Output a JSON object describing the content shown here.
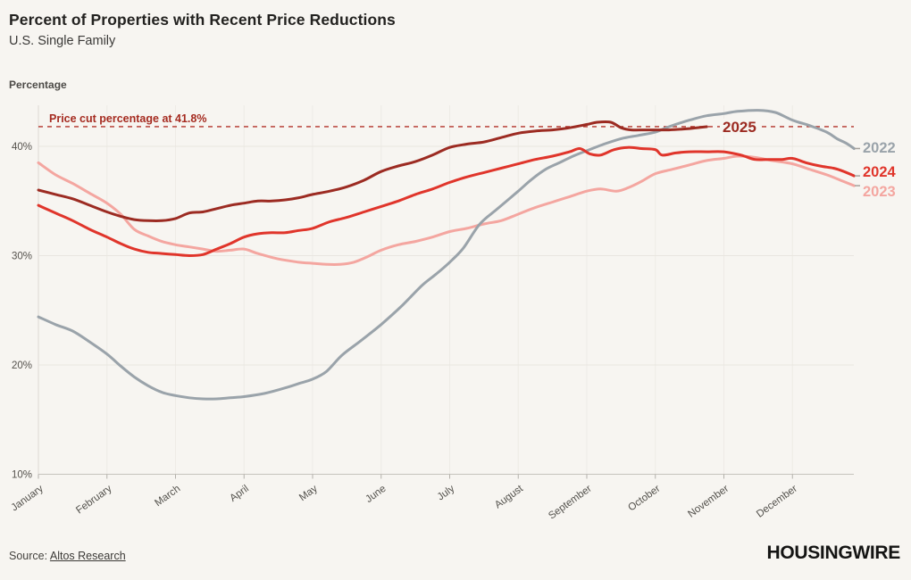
{
  "header": {
    "title": "Percent of Properties with Recent Price Reductions",
    "subtitle": "U.S. Single Family"
  },
  "chart_data": {
    "type": "line",
    "title": "Percent of Properties with Recent Price Reductions",
    "subtitle": "U.S. Single Family",
    "ylabel": "Percentage",
    "grid": "horizontal",
    "legend_position": "right-line-ends",
    "ylim": [
      10,
      45
    ],
    "y_ticks": [
      {
        "value": 40,
        "label": "40%"
      },
      {
        "value": 30,
        "label": "30%"
      },
      {
        "value": 20,
        "label": "20%"
      },
      {
        "value": 10,
        "label": "10%"
      }
    ],
    "x_categories": [
      "January",
      "February",
      "March",
      "April",
      "May",
      "June",
      "July",
      "August",
      "September",
      "October",
      "November",
      "December"
    ],
    "annotation": {
      "label": "Price cut percentage at 41.8%",
      "value": 41.8,
      "color": "#b23228",
      "style": "dashed"
    },
    "series": [
      {
        "name": "2022",
        "color": "#9aa3aa",
        "x": [
          0,
          0.25,
          0.5,
          0.75,
          1,
          1.2,
          1.4,
          1.6,
          1.8,
          2,
          2.2,
          2.4,
          2.6,
          2.8,
          3,
          3.3,
          3.6,
          3.8,
          4,
          4.2,
          4.43,
          4.7,
          5,
          5.3,
          5.6,
          5.8,
          6,
          6.2,
          6.44,
          6.7,
          7,
          7.2,
          7.4,
          7.6,
          7.8,
          8,
          8.25,
          8.5,
          8.75,
          9,
          9.2,
          9.5,
          9.75,
          10,
          10.2,
          10.5,
          10.75,
          11,
          11.25,
          11.5,
          11.65,
          11.78,
          11.9
        ],
        "values": [
          24.4,
          23.7,
          23.1,
          22.1,
          21.0,
          19.9,
          18.9,
          18.1,
          17.5,
          17.2,
          17.0,
          16.9,
          16.9,
          17.0,
          17.1,
          17.4,
          17.9,
          18.3,
          18.7,
          19.4,
          20.9,
          22.2,
          23.7,
          25.4,
          27.3,
          28.3,
          29.4,
          30.7,
          32.9,
          34.3,
          35.9,
          37.0,
          37.9,
          38.5,
          39.1,
          39.6,
          40.2,
          40.7,
          41.0,
          41.3,
          41.8,
          42.4,
          42.8,
          43.0,
          43.2,
          43.3,
          43.1,
          42.4,
          41.9,
          41.3,
          40.7,
          40.3,
          39.8
        ]
      },
      {
        "name": "2023",
        "color": "#f4a6a0",
        "x": [
          0,
          0.25,
          0.5,
          0.75,
          1,
          1.2,
          1.4,
          1.6,
          1.8,
          2,
          2.2,
          2.4,
          2.6,
          2.8,
          3,
          3.2,
          3.5,
          3.8,
          4,
          4.2,
          4.4,
          4.6,
          4.8,
          5,
          5.25,
          5.5,
          5.75,
          6,
          6.25,
          6.5,
          6.75,
          7,
          7.25,
          7.5,
          7.75,
          8,
          8.2,
          8.43,
          8.6,
          8.8,
          9,
          9.25,
          9.5,
          9.75,
          10,
          10.2,
          10.45,
          10.7,
          11,
          11.25,
          11.5,
          11.7,
          11.9
        ],
        "values": [
          38.5,
          37.4,
          36.6,
          35.7,
          34.8,
          33.8,
          32.4,
          31.8,
          31.3,
          31.0,
          30.8,
          30.6,
          30.4,
          30.5,
          30.6,
          30.2,
          29.7,
          29.4,
          29.3,
          29.2,
          29.2,
          29.4,
          29.9,
          30.5,
          31.0,
          31.3,
          31.7,
          32.2,
          32.5,
          32.9,
          33.2,
          33.8,
          34.4,
          34.9,
          35.4,
          35.9,
          36.1,
          35.9,
          36.2,
          36.8,
          37.5,
          37.9,
          38.3,
          38.7,
          38.9,
          39.1,
          39.0,
          38.7,
          38.4,
          37.9,
          37.4,
          36.9,
          36.4
        ]
      },
      {
        "name": "2024",
        "color": "#e0352b",
        "x": [
          0,
          0.25,
          0.5,
          0.75,
          1,
          1.2,
          1.4,
          1.6,
          1.8,
          2,
          2.2,
          2.4,
          2.6,
          2.8,
          3,
          3.2,
          3.4,
          3.6,
          3.8,
          4,
          4.25,
          4.5,
          4.75,
          5,
          5.25,
          5.5,
          5.75,
          6,
          6.25,
          6.5,
          6.75,
          7,
          7.25,
          7.5,
          7.75,
          7.9,
          8.05,
          8.2,
          8.4,
          8.6,
          8.8,
          9,
          9.1,
          9.3,
          9.5,
          9.75,
          10,
          10.25,
          10.45,
          10.65,
          10.85,
          11,
          11.2,
          11.4,
          11.6,
          11.75,
          11.9
        ],
        "values": [
          34.6,
          33.9,
          33.2,
          32.4,
          31.7,
          31.1,
          30.6,
          30.3,
          30.2,
          30.1,
          30.0,
          30.1,
          30.6,
          31.1,
          31.7,
          32.0,
          32.1,
          32.1,
          32.3,
          32.5,
          33.1,
          33.5,
          34.0,
          34.5,
          35.0,
          35.6,
          36.1,
          36.7,
          37.2,
          37.6,
          38.0,
          38.4,
          38.8,
          39.1,
          39.5,
          39.8,
          39.3,
          39.2,
          39.7,
          39.9,
          39.8,
          39.7,
          39.2,
          39.4,
          39.5,
          39.5,
          39.5,
          39.2,
          38.8,
          38.8,
          38.8,
          38.9,
          38.5,
          38.2,
          38.0,
          37.7,
          37.3
        ]
      },
      {
        "name": "2025",
        "color": "#9c2b22",
        "x": [
          0,
          0.25,
          0.5,
          0.75,
          1,
          1.2,
          1.4,
          1.6,
          1.8,
          2,
          2.2,
          2.4,
          2.6,
          2.8,
          3,
          3.2,
          3.4,
          3.6,
          3.8,
          4,
          4.25,
          4.5,
          4.75,
          5,
          5.25,
          5.5,
          5.75,
          6,
          6.25,
          6.5,
          6.75,
          7,
          7.25,
          7.5,
          7.75,
          8,
          8.15,
          8.35,
          8.5,
          8.65,
          8.85,
          9,
          9.2,
          9.45,
          9.6,
          9.75
        ],
        "values": [
          36.0,
          35.6,
          35.2,
          34.6,
          34.0,
          33.6,
          33.3,
          33.2,
          33.2,
          33.4,
          33.9,
          34.0,
          34.3,
          34.6,
          34.8,
          35.0,
          35.0,
          35.1,
          35.3,
          35.6,
          35.9,
          36.3,
          36.9,
          37.7,
          38.2,
          38.6,
          39.2,
          39.9,
          40.2,
          40.4,
          40.8,
          41.2,
          41.4,
          41.5,
          41.7,
          42.0,
          42.2,
          42.2,
          41.7,
          41.5,
          41.5,
          41.5,
          41.5,
          41.6,
          41.7,
          41.8
        ]
      }
    ]
  },
  "footer": {
    "source_prefix": "Source:",
    "source_link": "Altos Research",
    "logo": "HOUSINGWIRE"
  }
}
